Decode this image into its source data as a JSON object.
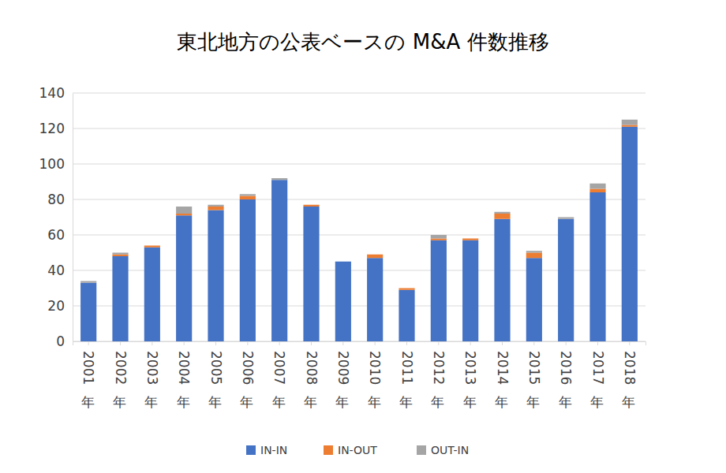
{
  "chart_data": {
    "type": "bar",
    "stacked": true,
    "title": "東北地方の公表ベースの M&A 件数推移",
    "categories": [
      "2001年",
      "2002年",
      "2003年",
      "2004年",
      "2005年",
      "2006年",
      "2007年",
      "2008年",
      "2009年",
      "2010年",
      "2011年",
      "2012年",
      "2013年",
      "2014年",
      "2015年",
      "2016年",
      "2017年",
      "2018年"
    ],
    "series": [
      {
        "name": "IN-IN",
        "color": "#4472c4",
        "values": [
          33,
          48,
          53,
          71,
          74,
          80,
          91,
          76,
          45,
          47,
          29,
          57,
          57,
          69,
          47,
          69,
          84,
          121
        ]
      },
      {
        "name": "IN-OUT",
        "color": "#ed7d31",
        "values": [
          0,
          1,
          1,
          1,
          2,
          2,
          0,
          1,
          0,
          2,
          1,
          1,
          1,
          3,
          3,
          0,
          2,
          1
        ]
      },
      {
        "name": "OUT-IN",
        "color": "#a5a5a5",
        "values": [
          1,
          1,
          0,
          4,
          1,
          1,
          1,
          0,
          0,
          0,
          0,
          2,
          0,
          1,
          1,
          1,
          3,
          3
        ]
      }
    ],
    "ylim": [
      0,
      140
    ],
    "yticks": [
      0,
      20,
      40,
      60,
      80,
      100,
      120,
      140
    ],
    "grid": true,
    "legend": "bottom"
  }
}
